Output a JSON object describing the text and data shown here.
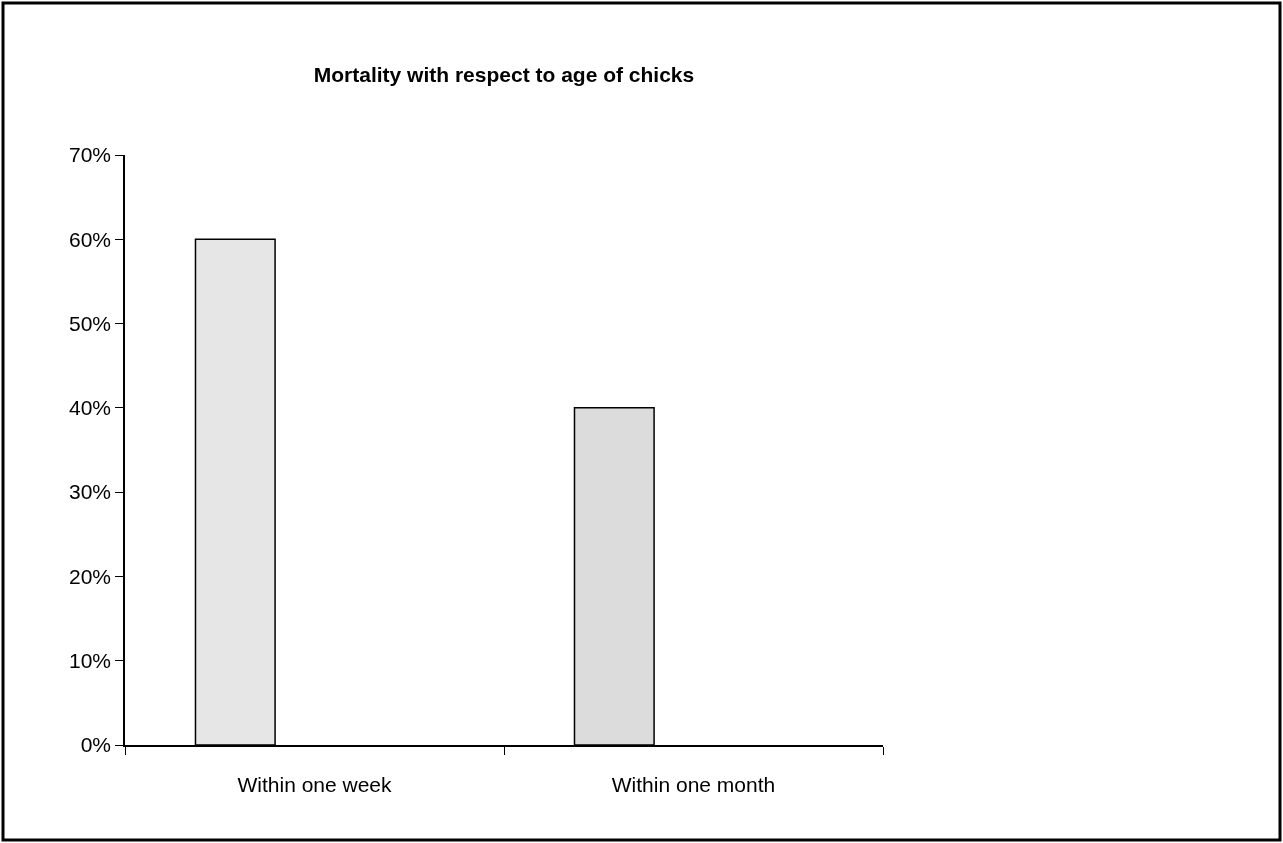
{
  "chart_data": {
    "type": "bar",
    "title": "Mortality with respect to age of chicks",
    "categories": [
      "Within one week",
      "Within one month"
    ],
    "values": [
      60,
      40
    ],
    "colors": [
      "#e6e6e6",
      "#dcdcdc"
    ],
    "ylim": [
      0,
      70
    ],
    "yticks": [
      {
        "value": 0,
        "label": "0%"
      },
      {
        "value": 10,
        "label": "10%"
      },
      {
        "value": 20,
        "label": "20%"
      },
      {
        "value": 30,
        "label": "30%"
      },
      {
        "value": 40,
        "label": "40%"
      },
      {
        "value": 50,
        "label": "50%"
      },
      {
        "value": 60,
        "label": "60%"
      },
      {
        "value": 70,
        "label": "70%"
      }
    ],
    "tick_labels": true
  }
}
